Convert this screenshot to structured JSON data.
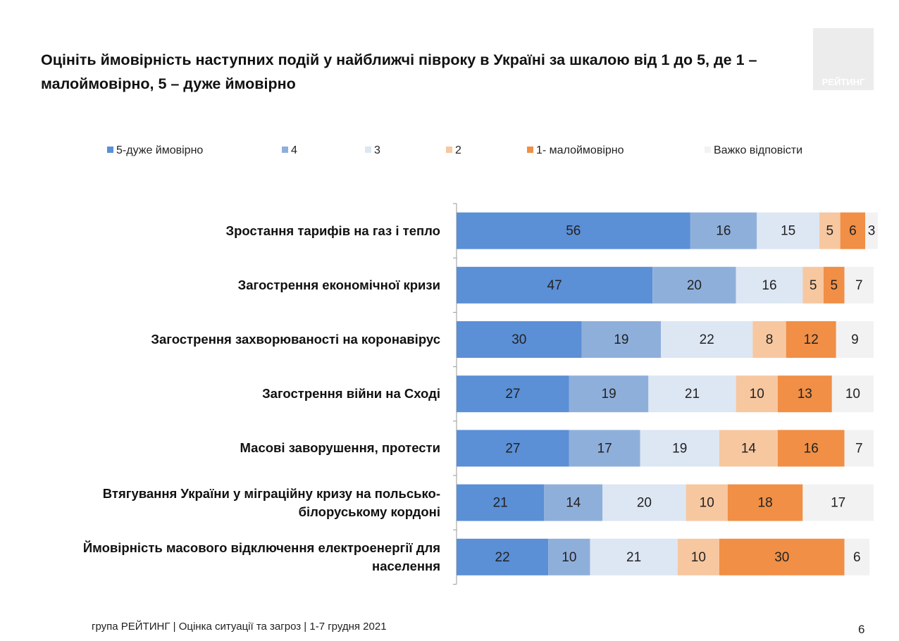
{
  "logo": "РЕЙТИНГ",
  "footer": "група РЕЙТИНГ |  Оцінка ситуації та загроз  | 1-7 грудня 2021",
  "page_number": "6",
  "chart_data": {
    "type": "bar",
    "orientation": "horizontal",
    "stacked": true,
    "title": "Оцініть ймовірність наступних подій у найближчі півроку в Україні за шкалою від 1 до 5, де 1 – малоймовірно, 5 – дуже ймовірно",
    "categories": [
      "Зростання тарифів на газ і тепло",
      "Загострення економічної кризи",
      "Загострення захворюваності на коронавірус",
      "Загострення війни на Сході",
      "Масові заворушення, протести",
      "Втягування України у міграційну кризу на польсько-білоруському кордоні",
      "Ймовірність масового відключення електроенергії для населення"
    ],
    "series": [
      {
        "name": "5-дуже ймовірно",
        "color": "#5b8fd6",
        "values": [
          56,
          47,
          30,
          27,
          27,
          21,
          22
        ]
      },
      {
        "name": "4",
        "color": "#8fafdb",
        "values": [
          16,
          20,
          19,
          19,
          17,
          14,
          10
        ]
      },
      {
        "name": "3",
        "color": "#dde6f3",
        "values": [
          15,
          16,
          22,
          21,
          19,
          20,
          21
        ]
      },
      {
        "name": "2",
        "color": "#f7c7a0",
        "values": [
          5,
          5,
          8,
          10,
          14,
          10,
          10
        ]
      },
      {
        "name": "1- малоймовірно",
        "color": "#f08f45",
        "values": [
          6,
          5,
          12,
          13,
          16,
          18,
          30
        ]
      },
      {
        "name": "Важко відповісти",
        "color": "#f2f2f2",
        "values": [
          3,
          7,
          9,
          10,
          7,
          17,
          6
        ]
      }
    ],
    "xlim": [
      0,
      100
    ],
    "legend": "top"
  }
}
